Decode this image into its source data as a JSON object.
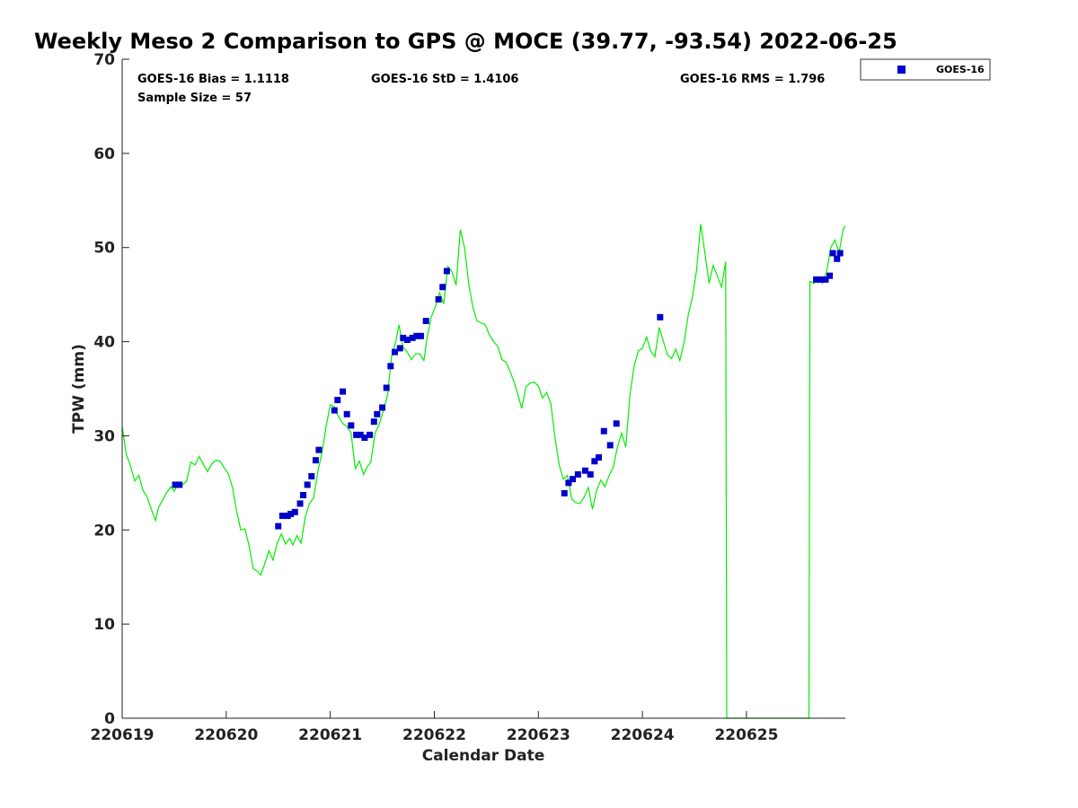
{
  "chart_data": {
    "type": "scatter",
    "title": "Weekly Meso 2 Comparison to GPS @ MOCE (39.77, -93.54) 2022-06-25",
    "xlabel": "Calendar Date",
    "ylabel": "TPW (mm)",
    "xlim": [
      0,
      6.95
    ],
    "ylim": [
      0,
      70
    ],
    "grid": false,
    "legend_position": "top-right",
    "x_ticks": [
      0,
      1,
      2,
      3,
      4,
      5,
      6
    ],
    "x_tick_labels": [
      "220619",
      "220620",
      "220621",
      "220622",
      "220623",
      "220624",
      "220625"
    ],
    "y_ticks": [
      0,
      10,
      20,
      30,
      40,
      50,
      60,
      70
    ],
    "stats": {
      "bias": "GOES-16 Bias = 1.1118",
      "std": "GOES-16 StD = 1.4106",
      "rms": "GOES-16 RMS = 1.796",
      "sample": "Sample Size = 57"
    },
    "series": [
      {
        "name": "GOES-16",
        "kind": "scatter",
        "color": "#0000cc",
        "points": [
          [
            0.51,
            24.8
          ],
          [
            0.55,
            24.8
          ],
          [
            1.5,
            20.4
          ],
          [
            1.54,
            21.5
          ],
          [
            1.59,
            21.5
          ],
          [
            1.62,
            21.7
          ],
          [
            1.66,
            21.9
          ],
          [
            1.71,
            22.8
          ],
          [
            1.74,
            23.7
          ],
          [
            1.78,
            24.8
          ],
          [
            1.82,
            25.7
          ],
          [
            1.86,
            27.4
          ],
          [
            1.89,
            28.5
          ],
          [
            2.04,
            32.7
          ],
          [
            2.07,
            33.8
          ],
          [
            2.12,
            34.7
          ],
          [
            2.16,
            32.3
          ],
          [
            2.2,
            31.1
          ],
          [
            2.25,
            30.1
          ],
          [
            2.29,
            30.1
          ],
          [
            2.33,
            29.8
          ],
          [
            2.38,
            30.1
          ],
          [
            2.42,
            31.5
          ],
          [
            2.45,
            32.3
          ],
          [
            2.5,
            33.0
          ],
          [
            2.54,
            35.1
          ],
          [
            2.58,
            37.4
          ],
          [
            2.62,
            38.9
          ],
          [
            2.67,
            39.3
          ],
          [
            2.7,
            40.4
          ],
          [
            2.74,
            40.2
          ],
          [
            2.79,
            40.4
          ],
          [
            2.83,
            40.6
          ],
          [
            2.87,
            40.6
          ],
          [
            2.92,
            42.2
          ],
          [
            3.04,
            44.5
          ],
          [
            3.08,
            45.8
          ],
          [
            3.12,
            47.5
          ],
          [
            4.25,
            23.9
          ],
          [
            4.29,
            25.0
          ],
          [
            4.33,
            25.4
          ],
          [
            4.38,
            25.9
          ],
          [
            4.45,
            26.3
          ],
          [
            4.5,
            25.9
          ],
          [
            4.54,
            27.3
          ],
          [
            4.58,
            27.7
          ],
          [
            4.63,
            30.5
          ],
          [
            4.69,
            29.0
          ],
          [
            4.75,
            31.3
          ],
          [
            5.17,
            42.6
          ],
          [
            6.67,
            46.6
          ],
          [
            6.71,
            46.6
          ],
          [
            6.76,
            46.6
          ],
          [
            6.8,
            47.0
          ],
          [
            6.83,
            49.4
          ],
          [
            6.87,
            48.8
          ],
          [
            6.9,
            49.4
          ]
        ]
      },
      {
        "kind": "line",
        "color": "#00ee00",
        "points": [
          [
            0.0,
            31.0
          ],
          [
            0.04,
            28.0
          ],
          [
            0.08,
            26.8
          ],
          [
            0.12,
            25.2
          ],
          [
            0.16,
            25.8
          ],
          [
            0.2,
            24.2
          ],
          [
            0.24,
            23.5
          ],
          [
            0.28,
            22.2
          ],
          [
            0.32,
            21.0
          ],
          [
            0.35,
            22.4
          ],
          [
            0.39,
            23.2
          ],
          [
            0.43,
            24.0
          ],
          [
            0.47,
            24.6
          ],
          [
            0.5,
            24.1
          ],
          [
            0.54,
            25.0
          ],
          [
            0.58,
            24.8
          ],
          [
            0.62,
            25.2
          ],
          [
            0.66,
            27.2
          ],
          [
            0.7,
            26.9
          ],
          [
            0.74,
            27.8
          ],
          [
            0.78,
            27.0
          ],
          [
            0.82,
            26.2
          ],
          [
            0.86,
            27.0
          ],
          [
            0.9,
            27.4
          ],
          [
            0.94,
            27.3
          ],
          [
            0.98,
            26.6
          ],
          [
            1.02,
            26.0
          ],
          [
            1.06,
            24.5
          ],
          [
            1.1,
            22.0
          ],
          [
            1.14,
            20.0
          ],
          [
            1.18,
            20.1
          ],
          [
            1.22,
            18.3
          ],
          [
            1.26,
            15.9
          ],
          [
            1.3,
            15.6
          ],
          [
            1.33,
            15.2
          ],
          [
            1.37,
            16.4
          ],
          [
            1.41,
            17.8
          ],
          [
            1.45,
            16.8
          ],
          [
            1.49,
            18.6
          ],
          [
            1.53,
            19.6
          ],
          [
            1.57,
            18.5
          ],
          [
            1.61,
            19.1
          ],
          [
            1.64,
            18.4
          ],
          [
            1.68,
            19.4
          ],
          [
            1.72,
            18.6
          ],
          [
            1.76,
            21.4
          ],
          [
            1.8,
            22.8
          ],
          [
            1.84,
            23.4
          ],
          [
            1.88,
            26.2
          ],
          [
            1.92,
            28.2
          ],
          [
            1.96,
            31.0
          ],
          [
            2.0,
            33.3
          ],
          [
            2.04,
            33.1
          ],
          [
            2.08,
            32.0
          ],
          [
            2.12,
            31.3
          ],
          [
            2.16,
            31.0
          ],
          [
            2.2,
            30.3
          ],
          [
            2.24,
            26.5
          ],
          [
            2.28,
            27.3
          ],
          [
            2.32,
            25.9
          ],
          [
            2.36,
            26.8
          ],
          [
            2.39,
            27.2
          ],
          [
            2.43,
            30.3
          ],
          [
            2.47,
            31.2
          ],
          [
            2.51,
            32.7
          ],
          [
            2.55,
            34.3
          ],
          [
            2.59,
            38.5
          ],
          [
            2.63,
            40.0
          ],
          [
            2.66,
            41.8
          ],
          [
            2.7,
            39.4
          ],
          [
            2.74,
            38.9
          ],
          [
            2.78,
            38.1
          ],
          [
            2.82,
            38.7
          ],
          [
            2.86,
            38.7
          ],
          [
            2.9,
            38.0
          ],
          [
            2.93,
            40.4
          ],
          [
            2.97,
            42.6
          ],
          [
            3.01,
            43.7
          ],
          [
            3.05,
            45.2
          ],
          [
            3.09,
            44.0
          ],
          [
            3.13,
            48.0
          ],
          [
            3.17,
            47.4
          ],
          [
            3.21,
            46.0
          ],
          [
            3.23,
            49.0
          ],
          [
            3.25,
            51.9
          ],
          [
            3.29,
            50.0
          ],
          [
            3.33,
            46.2
          ],
          [
            3.37,
            43.7
          ],
          [
            3.41,
            42.2
          ],
          [
            3.45,
            42.0
          ],
          [
            3.49,
            41.8
          ],
          [
            3.53,
            40.7
          ],
          [
            3.57,
            40.0
          ],
          [
            3.61,
            39.5
          ],
          [
            3.65,
            38.1
          ],
          [
            3.69,
            37.8
          ],
          [
            3.73,
            36.8
          ],
          [
            3.77,
            35.6
          ],
          [
            3.8,
            34.5
          ],
          [
            3.84,
            32.9
          ],
          [
            3.88,
            35.2
          ],
          [
            3.92,
            35.6
          ],
          [
            3.96,
            35.7
          ],
          [
            4.0,
            35.3
          ],
          [
            4.04,
            34.0
          ],
          [
            4.08,
            34.6
          ],
          [
            4.12,
            33.4
          ],
          [
            4.16,
            29.8
          ],
          [
            4.2,
            26.9
          ],
          [
            4.24,
            25.4
          ],
          [
            4.28,
            25.8
          ],
          [
            4.32,
            23.3
          ],
          [
            4.36,
            22.9
          ],
          [
            4.4,
            22.8
          ],
          [
            4.44,
            23.5
          ],
          [
            4.48,
            24.5
          ],
          [
            4.52,
            22.2
          ],
          [
            4.56,
            24.2
          ],
          [
            4.6,
            25.3
          ],
          [
            4.64,
            24.6
          ],
          [
            4.68,
            25.8
          ],
          [
            4.72,
            26.7
          ],
          [
            4.76,
            28.8
          ],
          [
            4.8,
            30.3
          ],
          [
            4.84,
            28.8
          ],
          [
            4.88,
            34.3
          ],
          [
            4.92,
            37.4
          ],
          [
            4.96,
            39.0
          ],
          [
            5.0,
            39.3
          ],
          [
            5.04,
            40.5
          ],
          [
            5.08,
            39.0
          ],
          [
            5.12,
            38.4
          ],
          [
            5.16,
            41.5
          ],
          [
            5.2,
            40.1
          ],
          [
            5.24,
            38.6
          ],
          [
            5.28,
            38.2
          ],
          [
            5.32,
            39.2
          ],
          [
            5.36,
            38.0
          ],
          [
            5.4,
            39.9
          ],
          [
            5.44,
            42.8
          ],
          [
            5.48,
            44.7
          ],
          [
            5.52,
            47.6
          ],
          [
            5.54,
            50.0
          ],
          [
            5.56,
            52.5
          ],
          [
            5.6,
            49.5
          ],
          [
            5.64,
            46.2
          ],
          [
            5.68,
            48.1
          ],
          [
            5.72,
            47.0
          ],
          [
            5.76,
            45.8
          ],
          [
            5.8,
            48.5
          ],
          [
            5.81,
            0.0
          ],
          [
            6.6,
            0.0
          ],
          [
            6.61,
            46.4
          ],
          [
            6.65,
            46.2
          ],
          [
            6.69,
            46.7
          ],
          [
            6.73,
            46.2
          ],
          [
            6.77,
            47.4
          ],
          [
            6.81,
            50.0
          ],
          [
            6.85,
            50.8
          ],
          [
            6.89,
            49.5
          ],
          [
            6.93,
            52.0
          ],
          [
            6.95,
            52.3
          ]
        ]
      }
    ]
  }
}
